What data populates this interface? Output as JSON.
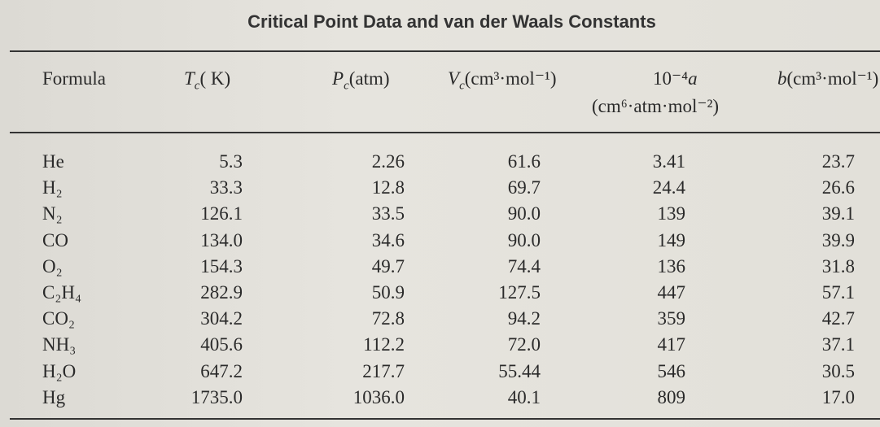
{
  "title": "Critical Point Data and van der Waals Constants",
  "table": {
    "headers": [
      {
        "symbol": "Formula"
      },
      {
        "symbol": "T",
        "sub": "c",
        "unit": "( K)"
      },
      {
        "symbol": "P",
        "sub": "c",
        "unit": "(atm)"
      },
      {
        "symbol": "V",
        "sub": "c",
        "unit": "(cm³·mol⁻¹)"
      },
      {
        "prefix": "10⁻⁴",
        "symbol": "a",
        "unit": "(cm⁶·atm·mol⁻²)"
      },
      {
        "symbol": "b",
        "unit": "(cm³·mol⁻¹)"
      }
    ],
    "rows": [
      [
        "He",
        "5.3",
        "2.26",
        "61.6",
        "3.41",
        "23.7"
      ],
      [
        "H₂",
        "33.3",
        "12.8",
        "69.7",
        "24.4",
        "26.6"
      ],
      [
        "N₂",
        "126.1",
        "33.5",
        "90.0",
        "139",
        "39.1"
      ],
      [
        "CO",
        "134.0",
        "34.6",
        "90.0",
        "149",
        "39.9"
      ],
      [
        "O₂",
        "154.3",
        "49.7",
        "74.4",
        "136",
        "31.8"
      ],
      [
        "C₂H₄",
        "282.9",
        "50.9",
        "127.5",
        "447",
        "57.1"
      ],
      [
        "CO₂",
        "304.2",
        "72.8",
        "94.2",
        "359",
        "42.7"
      ],
      [
        "NH₃",
        "405.6",
        "112.2",
        "72.0",
        "417",
        "37.1"
      ],
      [
        "H₂O",
        "647.2",
        "217.7",
        "55.44",
        "546",
        "30.5"
      ],
      [
        "Hg",
        "1735.0",
        "1036.0",
        "40.1",
        "809",
        "17.0"
      ]
    ]
  }
}
